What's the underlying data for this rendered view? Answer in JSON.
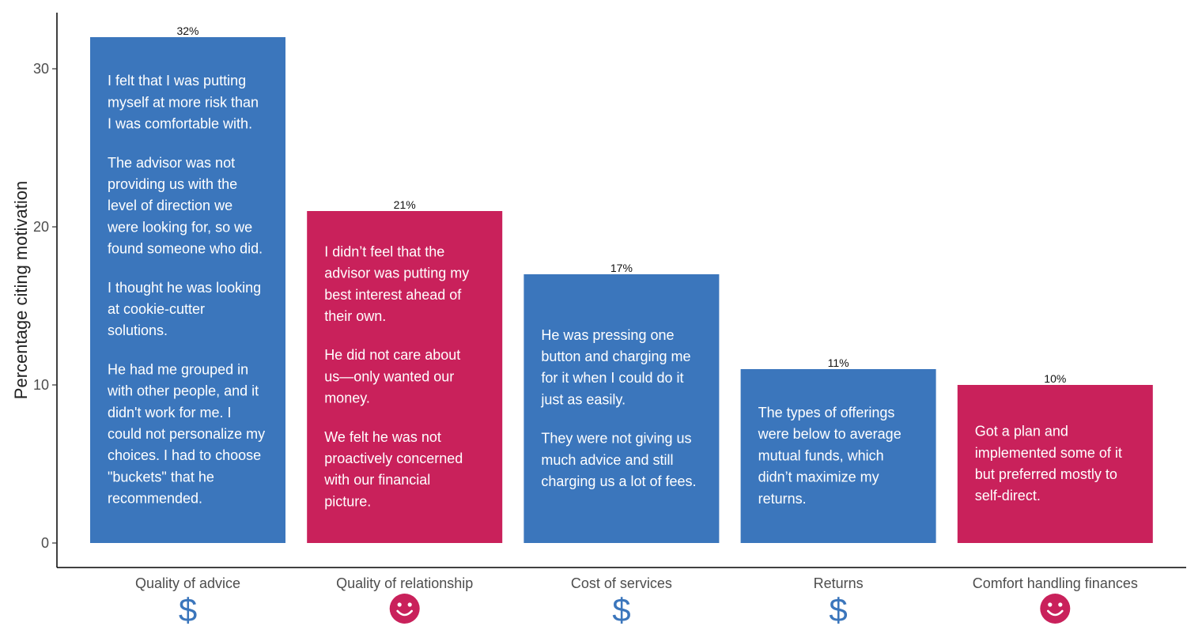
{
  "chart_data": {
    "type": "bar",
    "ylabel": "Percentage citing motivation",
    "xlabel": "",
    "ylim": [
      0,
      33
    ],
    "yticks": [
      0,
      10,
      20,
      30
    ],
    "grid": false,
    "categories": [
      "Quality of advice",
      "Quality of relationship",
      "Cost of services",
      "Returns",
      "Comfort handling finances"
    ],
    "values": [
      32,
      21,
      17,
      11,
      10
    ],
    "value_labels": [
      "32%",
      "21%",
      "17%",
      "11%",
      "10%"
    ],
    "colors": [
      "#3b76bc",
      "#c9215b",
      "#3b76bc",
      "#3b76bc",
      "#c9215b"
    ],
    "icons": [
      "dollar-icon",
      "smiley-icon",
      "dollar-icon",
      "dollar-icon",
      "smiley-icon"
    ],
    "quotes": [
      [
        [
          "I felt that I was putting",
          "myself at more risk than",
          "I was comfortable with."
        ],
        [
          "The advisor was not",
          "providing us with the",
          "level of direction we",
          "were looking for, so we",
          "found someone who did."
        ],
        [
          "I thought he was looking",
          "at cookie-cutter",
          "solutions."
        ],
        [
          "He had me grouped in",
          "with other people, and it",
          "didn't work for me. I",
          "could not personalize my",
          "choices. I had to choose",
          "\"buckets\" that he",
          "recommended."
        ]
      ],
      [
        [
          "I didn’t feel that the",
          "advisor was putting my",
          "best interest ahead of",
          "their own."
        ],
        [
          "He did not care about",
          "us—only wanted our",
          "money."
        ],
        [
          "We felt he was not",
          "proactively concerned",
          "with our financial",
          "picture."
        ]
      ],
      [
        [
          "He was pressing one",
          "button and charging me",
          "for it when I could do it",
          "just as easily."
        ],
        [
          "They were not giving us",
          "much advice and still",
          "charging us a lot of fees."
        ]
      ],
      [
        [
          "The types of offerings",
          "were below to average",
          "mutual funds, which",
          "didn’t maximize my",
          "returns."
        ]
      ],
      [
        [
          "Got a plan and",
          "implemented some of it",
          "but preferred mostly to",
          "self-direct."
        ]
      ]
    ]
  },
  "icon_glyphs": {
    "dollar-icon": "$",
    "smiley-icon": "☺"
  }
}
